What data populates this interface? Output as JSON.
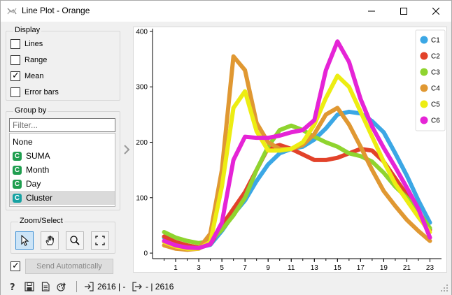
{
  "window": {
    "title": "Line Plot - Orange"
  },
  "display": {
    "label": "Display",
    "options": [
      {
        "label": "Lines",
        "checked": false
      },
      {
        "label": "Range",
        "checked": false
      },
      {
        "label": "Mean",
        "checked": true
      },
      {
        "label": "Error bars",
        "checked": false
      }
    ]
  },
  "group_by": {
    "label": "Group by",
    "filter_placeholder": "Filter...",
    "items": [
      {
        "label": "None",
        "icon": "",
        "selected": false
      },
      {
        "label": "SUMA",
        "icon": "C",
        "selected": false
      },
      {
        "label": "Month",
        "icon": "C",
        "selected": false
      },
      {
        "label": "Day",
        "icon": "C",
        "selected": false
      },
      {
        "label": "Cluster",
        "icon": "C",
        "selected": true
      }
    ]
  },
  "zoom_select": {
    "label": "Zoom/Select"
  },
  "send": {
    "label": "Send Automatically",
    "auto_checked": true
  },
  "status": {
    "input_count": "2616 | -",
    "output_count": "- | 2616"
  },
  "chart_data": {
    "type": "line",
    "x": [
      0,
      1,
      2,
      3,
      4,
      5,
      6,
      7,
      8,
      9,
      10,
      11,
      12,
      13,
      14,
      15,
      16,
      17,
      18,
      19,
      20,
      21,
      22,
      23
    ],
    "xticks": [
      "1",
      "3",
      "5",
      "7",
      "9",
      "11",
      "13",
      "15",
      "17",
      "19",
      "21",
      "23"
    ],
    "xtick_values": [
      1,
      3,
      5,
      7,
      9,
      11,
      13,
      15,
      17,
      19,
      21,
      23
    ],
    "yticks": [
      "0",
      "100",
      "200",
      "300",
      "400"
    ],
    "ytick_values": [
      0,
      100,
      200,
      300,
      400
    ],
    "xlim": [
      -1,
      24
    ],
    "ylim": [
      -10,
      405
    ],
    "legend_position": "top-right",
    "series": [
      {
        "name": "C1",
        "color": "#3ba7e5",
        "values": [
          28,
          18,
          12,
          10,
          15,
          40,
          70,
          95,
          130,
          160,
          180,
          188,
          192,
          205,
          225,
          250,
          255,
          252,
          238,
          218,
          180,
          140,
          95,
          55
        ]
      },
      {
        "name": "C2",
        "color": "#e2422a",
        "values": [
          30,
          20,
          14,
          10,
          16,
          50,
          80,
          110,
          150,
          190,
          195,
          188,
          178,
          168,
          168,
          172,
          180,
          188,
          185,
          165,
          135,
          105,
          75,
          42
        ]
      },
      {
        "name": "C3",
        "color": "#8fd42f",
        "values": [
          38,
          28,
          22,
          18,
          22,
          42,
          68,
          100,
          150,
          192,
          222,
          230,
          222,
          210,
          200,
          192,
          180,
          175,
          165,
          145,
          120,
          100,
          75,
          45
        ]
      },
      {
        "name": "C4",
        "color": "#e09832",
        "values": [
          14,
          8,
          6,
          8,
          35,
          150,
          355,
          330,
          235,
          200,
          188,
          188,
          195,
          215,
          250,
          262,
          232,
          192,
          150,
          112,
          85,
          60,
          40,
          22
        ]
      },
      {
        "name": "C5",
        "color": "#eded12",
        "values": [
          20,
          12,
          8,
          8,
          20,
          120,
          262,
          292,
          220,
          185,
          185,
          188,
          200,
          232,
          280,
          320,
          300,
          255,
          210,
          165,
          125,
          95,
          65,
          38
        ]
      },
      {
        "name": "C6",
        "color": "#e524d6",
        "values": [
          22,
          14,
          10,
          9,
          16,
          55,
          168,
          210,
          208,
          208,
          212,
          218,
          222,
          240,
          330,
          382,
          345,
          278,
          228,
          190,
          155,
          118,
          80,
          28
        ]
      }
    ]
  }
}
